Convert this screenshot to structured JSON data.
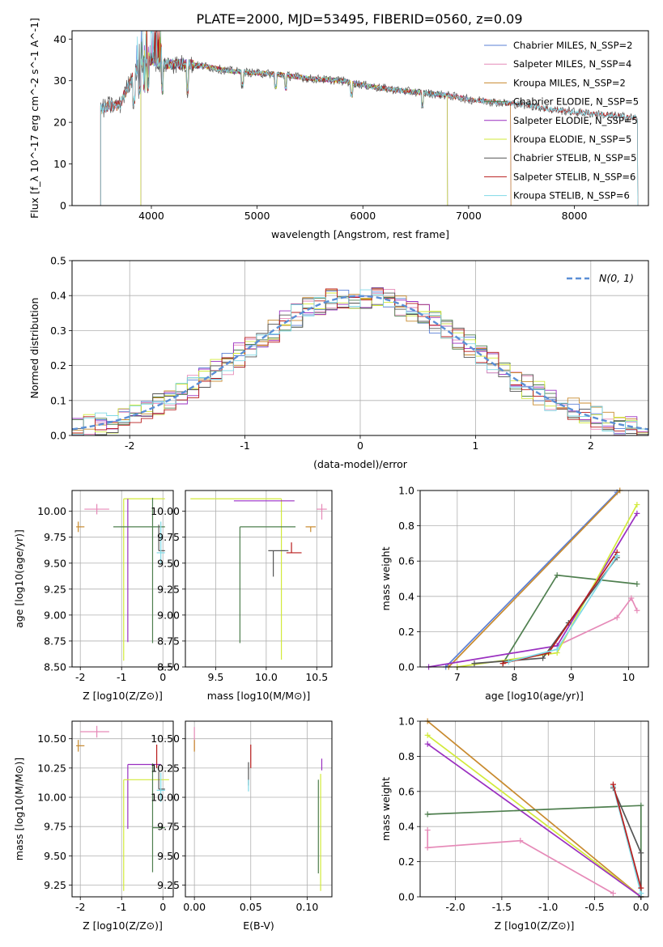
{
  "figure_title": "PLATE=2000, MJD=53495, FIBERID=0560, z=0.09",
  "colors": {
    "Chabrier MILES": "#5a7fd6",
    "Salpeter MILES": "#e68ab8",
    "Kroupa MILES": "#c88a2e",
    "Chabrier ELODIE": "#4f7f4f",
    "Salpeter ELODIE": "#9a2fc0",
    "Kroupa ELODIE": "#d2ea3a",
    "Chabrier STELIB": "#555555",
    "Salpeter STELIB": "#b81c1c",
    "Kroupa STELIB": "#7fd9e6",
    "gaussian": "#5b8fd6"
  },
  "chart_data": [
    {
      "id": "spectrum",
      "type": "line",
      "xlabel": "wavelength [Angstrom, rest frame]",
      "ylabel": "Flux [f_λ 10^-17 erg cm^-2 s^-1 A^-1]",
      "xlim": [
        3250,
        8700
      ],
      "ylim": [
        0,
        42
      ],
      "xticks": [
        4000,
        5000,
        6000,
        7000,
        8000
      ],
      "yticks": [
        0,
        10,
        20,
        30,
        40
      ],
      "legend": "top-right",
      "legend_labels": [
        "Chabrier MILES, N_SSP=2",
        "Salpeter MILES, N_SSP=4",
        "Kroupa MILES, N_SSP=2",
        "Chabrier ELODIE, N_SSP=5",
        "Salpeter ELODIE, N_SSP=5",
        "Kroupa ELODIE, N_SSP=5",
        "Chabrier STELIB, N_SSP=5",
        "Salpeter STELIB, N_SSP=6",
        "Kroupa STELIB, N_SSP=6"
      ],
      "continuum": {
        "x": [
          3520,
          3600,
          3700,
          3800,
          3900,
          4000,
          4100,
          4300,
          4500,
          4700,
          4900,
          5200,
          5500,
          5800,
          6100,
          6400,
          6600,
          6800,
          7000,
          7200,
          7400,
          7600,
          7800,
          8000,
          8200,
          8400,
          8600
        ],
        "y": [
          23,
          24,
          24,
          30,
          34,
          35,
          34,
          34,
          33.5,
          32.5,
          32,
          31.5,
          30.5,
          30,
          28.5,
          27.5,
          27,
          26.5,
          25.5,
          25,
          24.5,
          24,
          23,
          22.5,
          22,
          21.5,
          21
        ]
      },
      "series_ranges": [
        {
          "name": "Chabrier MILES",
          "xmin": 3520,
          "xmax": 7400
        },
        {
          "name": "Salpeter MILES",
          "xmin": 3520,
          "xmax": 7400
        },
        {
          "name": "Kroupa MILES",
          "xmin": 3520,
          "xmax": 7400
        },
        {
          "name": "Chabrier ELODIE",
          "xmin": 3900,
          "xmax": 6800
        },
        {
          "name": "Salpeter ELODIE",
          "xmin": 3900,
          "xmax": 6800
        },
        {
          "name": "Kroupa ELODIE",
          "xmin": 3900,
          "xmax": 6800
        },
        {
          "name": "Chabrier STELIB",
          "xmin": 3520,
          "xmax": 8600
        },
        {
          "name": "Salpeter STELIB",
          "xmin": 3520,
          "xmax": 8600
        },
        {
          "name": "Kroupa STELIB",
          "xmin": 3520,
          "xmax": 8600
        }
      ]
    },
    {
      "id": "residuals",
      "type": "step",
      "xlabel": "(data-model)/error",
      "ylabel": "Normed distribution",
      "xlim": [
        -2.5,
        2.5
      ],
      "ylim": [
        0,
        0.5
      ],
      "xticks": [
        -2,
        -1,
        0,
        1,
        2
      ],
      "yticks": [
        0.0,
        0.1,
        0.2,
        0.3,
        0.4,
        0.5
      ],
      "grid": true,
      "legend": "top-right",
      "legend_label": "N(0, 1)",
      "bin_width": 0.1
    },
    {
      "id": "age-vs-Z",
      "type": "errorbar",
      "xlabel": "Z [log10(Z/Z⊙)]",
      "ylabel": "age  [log10(age/yr)]",
      "xlim": [
        -2.2,
        0.25
      ],
      "ylim": [
        8.5,
        10.2
      ],
      "xticks": [
        -2,
        -1,
        0
      ],
      "yticks": [
        8.5,
        8.75,
        9.0,
        9.25,
        9.5,
        9.75,
        10.0
      ],
      "grid": true,
      "points": [
        {
          "name": "Salpeter MILES",
          "x": -1.6,
          "y": 10.02,
          "xerr": [
            0.3,
            0.3
          ],
          "yerr": [
            0.05,
            0.05
          ]
        },
        {
          "name": "Kroupa MILES",
          "x": -2.05,
          "y": 9.85,
          "xerr": [
            0.05,
            0.15
          ],
          "yerr": [
            0.05,
            0.05
          ]
        },
        {
          "name": "Kroupa ELODIE",
          "x": -0.95,
          "y": 10.12,
          "xerr": [
            0.0,
            1.0
          ],
          "yerr": [
            1.56,
            0.0
          ]
        },
        {
          "name": "Salpeter ELODIE",
          "x": -0.85,
          "y": 10.12,
          "xerr": [
            0.0,
            0.0
          ],
          "yerr": [
            1.38,
            0.0
          ]
        },
        {
          "name": "Chabrier ELODIE",
          "x": -0.25,
          "y": 9.85,
          "xerr": [
            0.95,
            0.3
          ],
          "yerr": [
            1.12,
            0.28
          ]
        },
        {
          "name": "Chabrier STELIB",
          "x": -0.1,
          "y": 9.62,
          "xerr": [
            0.0,
            0.15
          ],
          "yerr": [
            0.0,
            0.25
          ]
        },
        {
          "name": "Kroupa STELIB",
          "x": -0.05,
          "y": 9.6,
          "xerr": [
            0.1,
            0.1
          ],
          "yerr": [
            0.1,
            0.3
          ]
        }
      ]
    },
    {
      "id": "age-vs-mass",
      "type": "errorbar",
      "xlabel": "mass [log10(M/M⊙)]",
      "xlim": [
        9.2,
        10.65
      ],
      "ylim": [
        8.5,
        10.2
      ],
      "xticks": [
        9.5,
        10.0,
        10.5
      ],
      "yticks": [
        8.5,
        8.75,
        9.0,
        9.25,
        9.5,
        9.75,
        10.0
      ],
      "grid": true,
      "points": [
        {
          "name": "Kroupa ELODIE",
          "x": 10.15,
          "y": 10.12,
          "xerr": [
            0.9,
            0.0
          ],
          "yerr": [
            1.55,
            0.0
          ]
        },
        {
          "name": "Salpeter ELODIE",
          "x": 10.28,
          "y": 10.1,
          "xerr": [
            0.6,
            0.0
          ],
          "yerr": [
            0.0,
            0.0
          ]
        },
        {
          "name": "Chabrier ELODIE",
          "x": 9.74,
          "y": 9.85,
          "xerr": [
            0.0,
            0.55
          ],
          "yerr": [
            1.12,
            0.0
          ]
        },
        {
          "name": "Salpeter MILES",
          "x": 10.55,
          "y": 10.02,
          "xerr": [
            0.05,
            0.05
          ],
          "yerr": [
            0.1,
            0.05
          ]
        },
        {
          "name": "Kroupa MILES",
          "x": 10.44,
          "y": 9.85,
          "xerr": [
            0.05,
            0.05
          ],
          "yerr": [
            0.05,
            0.0
          ]
        },
        {
          "name": "Chabrier STELIB",
          "x": 10.07,
          "y": 9.62,
          "xerr": [
            0.05,
            0.15
          ],
          "yerr": [
            0.25,
            0.0
          ]
        },
        {
          "name": "Salpeter STELIB",
          "x": 10.25,
          "y": 9.6,
          "xerr": [
            0.05,
            0.1
          ],
          "yerr": [
            0.0,
            0.1
          ]
        }
      ]
    },
    {
      "id": "mass-weight-vs-age",
      "type": "line",
      "xlabel": "age  [log10(age/yr)]",
      "ylabel": "mass weight",
      "xlim": [
        6.35,
        10.35
      ],
      "ylim": [
        0,
        1.0
      ],
      "xticks": [
        7,
        8,
        9,
        10
      ],
      "yticks": [
        0.0,
        0.2,
        0.4,
        0.6,
        0.8,
        1.0
      ],
      "grid": true,
      "series": [
        {
          "name": "Chabrier MILES",
          "x": [
            6.8,
            9.8
          ],
          "y": [
            0.0,
            0.99
          ]
        },
        {
          "name": "Kroupa MILES",
          "x": [
            6.85,
            9.85
          ],
          "y": [
            0.0,
            1.0
          ]
        },
        {
          "name": "Salpeter MILES",
          "x": [
            8.75,
            9.8,
            10.05,
            10.15
          ],
          "y": [
            0.12,
            0.28,
            0.39,
            0.32
          ]
        },
        {
          "name": "Chabrier ELODIE",
          "x": [
            7.8,
            8.75,
            10.15
          ],
          "y": [
            0.02,
            0.52,
            0.47
          ]
        },
        {
          "name": "Salpeter ELODIE",
          "x": [
            6.5,
            8.75,
            10.15
          ],
          "y": [
            0.0,
            0.12,
            0.87
          ]
        },
        {
          "name": "Kroupa ELODIE",
          "x": [
            7.0,
            8.75,
            10.15
          ],
          "y": [
            0.0,
            0.08,
            0.92
          ]
        },
        {
          "name": "Chabrier STELIB",
          "x": [
            7.3,
            8.5,
            8.95,
            9.8
          ],
          "y": [
            0.02,
            0.05,
            0.25,
            0.62
          ]
        },
        {
          "name": "Salpeter STELIB",
          "x": [
            7.8,
            8.6,
            9.8
          ],
          "y": [
            0.02,
            0.08,
            0.65
          ]
        },
        {
          "name": "Kroupa STELIB",
          "x": [
            7.9,
            8.75,
            9.8
          ],
          "y": [
            0.03,
            0.1,
            0.63
          ]
        }
      ]
    },
    {
      "id": "mass-vs-Z",
      "type": "errorbar",
      "xlabel": "Z [log10(Z/Z⊙)]",
      "ylabel": "mass [log10(M/M⊙)]",
      "xlim": [
        -2.2,
        0.25
      ],
      "ylim": [
        9.15,
        10.65
      ],
      "xticks": [
        -2,
        -1,
        0
      ],
      "yticks": [
        9.25,
        9.5,
        9.75,
        10.0,
        10.25,
        10.5
      ],
      "grid": true,
      "points": [
        {
          "name": "Salpeter MILES",
          "x": -1.6,
          "y": 10.56,
          "xerr": [
            0.4,
            0.3
          ],
          "yerr": [
            0.05,
            0.05
          ]
        },
        {
          "name": "Kroupa MILES",
          "x": -2.05,
          "y": 10.44,
          "xerr": [
            0.05,
            0.15
          ],
          "yerr": [
            0.05,
            0.05
          ]
        },
        {
          "name": "Salpeter ELODIE",
          "x": -0.85,
          "y": 10.28,
          "xerr": [
            0.0,
            0.8
          ],
          "yerr": [
            0.55,
            0.0
          ]
        },
        {
          "name": "Kroupa ELODIE",
          "x": -0.95,
          "y": 10.15,
          "xerr": [
            0.0,
            1.1
          ],
          "yerr": [
            0.95,
            0.0
          ]
        },
        {
          "name": "Chabrier ELODIE",
          "x": -0.25,
          "y": 9.74,
          "xerr": [
            0.0,
            0.3
          ],
          "yerr": [
            0.38,
            0.55
          ]
        },
        {
          "name": "Salpeter STELIB",
          "x": -0.15,
          "y": 10.35,
          "xerr": [
            0.0,
            0.0
          ],
          "yerr": [
            0.1,
            0.1
          ]
        },
        {
          "name": "Chabrier STELIB",
          "x": -0.1,
          "y": 10.07,
          "xerr": [
            0.0,
            0.15
          ],
          "yerr": [
            0.0,
            0.15
          ]
        },
        {
          "name": "Kroupa STELIB",
          "x": -0.05,
          "y": 10.06,
          "xerr": [
            0.1,
            0.1
          ],
          "yerr": [
            0.1,
            0.15
          ]
        }
      ]
    },
    {
      "id": "mass-vs-EBV",
      "type": "errorbar",
      "xlabel": "E(B-V)",
      "xlim": [
        -0.008,
        0.122
      ],
      "ylim": [
        9.15,
        10.65
      ],
      "xticks": [
        0.0,
        0.05,
        0.1
      ],
      "yticks": [
        9.25,
        9.5,
        9.75,
        10.0,
        10.25,
        10.5
      ],
      "grid": true,
      "points": [
        {
          "name": "Salpeter MILES",
          "x": 0.0,
          "y": 10.5,
          "xerr": [
            0,
            0
          ],
          "yerr": [
            0.1,
            0.1
          ]
        },
        {
          "name": "Kroupa MILES",
          "x": 0.0,
          "y": 10.44,
          "xerr": [
            0,
            0
          ],
          "yerr": [
            0.05,
            0.05
          ]
        },
        {
          "name": "Salpeter STELIB",
          "x": 0.05,
          "y": 10.35,
          "xerr": [
            0,
            0
          ],
          "yerr": [
            0.1,
            0.1
          ]
        },
        {
          "name": "Chabrier STELIB",
          "x": 0.048,
          "y": 10.2,
          "xerr": [
            0,
            0
          ],
          "yerr": [
            0.1,
            0.1
          ]
        },
        {
          "name": "Kroupa STELIB",
          "x": 0.048,
          "y": 10.1,
          "xerr": [
            0,
            0
          ],
          "yerr": [
            0.05,
            0.05
          ]
        },
        {
          "name": "Salpeter ELODIE",
          "x": 0.113,
          "y": 10.28,
          "xerr": [
            0,
            0
          ],
          "yerr": [
            0.05,
            0.05
          ]
        },
        {
          "name": "Kroupa ELODIE",
          "x": 0.112,
          "y": 9.7,
          "xerr": [
            0,
            0
          ],
          "yerr": [
            0.5,
            0.5
          ]
        },
        {
          "name": "Chabrier ELODIE",
          "x": 0.11,
          "y": 9.75,
          "xerr": [
            0,
            0
          ],
          "yerr": [
            0.4,
            0.4
          ]
        }
      ]
    },
    {
      "id": "mass-weight-vs-Z",
      "type": "line",
      "xlabel": "Z [log10(Z/Z⊙)]",
      "ylabel": "mass weight",
      "xlim": [
        -2.38,
        0.08
      ],
      "ylim": [
        0,
        1.0
      ],
      "xticks": [
        -2.0,
        -1.5,
        -1.0,
        -0.5,
        0.0
      ],
      "yticks": [
        0.0,
        0.2,
        0.4,
        0.6,
        0.8,
        1.0
      ],
      "grid": true,
      "series": [
        {
          "name": "Kroupa MILES",
          "x": [
            -2.3,
            0.0
          ],
          "y": [
            1.0,
            0.0
          ]
        },
        {
          "name": "Kroupa ELODIE",
          "x": [
            -2.3,
            0.0
          ],
          "y": [
            0.92,
            0.0
          ]
        },
        {
          "name": "Salpeter ELODIE",
          "x": [
            -2.3,
            0.0
          ],
          "y": [
            0.87,
            0.0
          ]
        },
        {
          "name": "Chabrier ELODIE",
          "x": [
            -2.3,
            0.0,
            0.0
          ],
          "y": [
            0.47,
            0.52,
            0.0
          ]
        },
        {
          "name": "Salpeter MILES",
          "x": [
            -2.3,
            -2.3,
            -1.3,
            -0.3
          ],
          "y": [
            0.38,
            0.28,
            0.32,
            0.02
          ]
        },
        {
          "name": "Chabrier STELIB",
          "x": [
            -0.3,
            0.0,
            0.0
          ],
          "y": [
            0.62,
            0.25,
            0.0
          ]
        },
        {
          "name": "Kroupa STELIB",
          "x": [
            -0.3,
            0.0
          ],
          "y": [
            0.63,
            0.02
          ]
        },
        {
          "name": "Salpeter STELIB",
          "x": [
            -0.3,
            0.0
          ],
          "y": [
            0.64,
            0.05
          ]
        }
      ]
    }
  ]
}
